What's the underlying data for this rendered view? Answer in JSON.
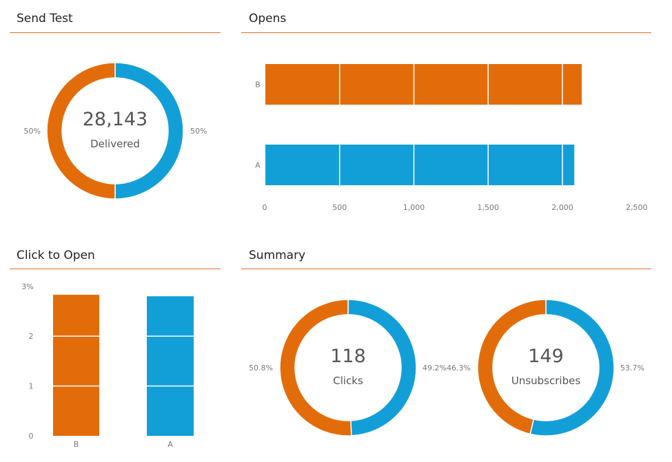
{
  "colors": {
    "B": "#e36c0a",
    "A": "#129fd8",
    "divider": "#e46b2b",
    "text": "#555555",
    "axis": "#777777"
  },
  "panels": {
    "send_test": {
      "title": "Send Test"
    },
    "opens": {
      "title": "Opens"
    },
    "click_to_open": {
      "title": "Click to Open"
    },
    "summary": {
      "title": "Summary"
    }
  },
  "chart_data": [
    {
      "id": "send_test",
      "type": "pie",
      "title": "Send Test",
      "center_value": "28,143",
      "center_label": "Delivered",
      "slices": [
        {
          "name": "B",
          "value": 50,
          "label": "50%"
        },
        {
          "name": "A",
          "value": 50,
          "label": "50%"
        }
      ]
    },
    {
      "id": "opens",
      "type": "bar",
      "orientation": "horizontal",
      "title": "Opens",
      "categories": [
        "B",
        "A"
      ],
      "values": [
        2130,
        2080
      ],
      "xlim": [
        0,
        2500
      ],
      "xticks": [
        0,
        500,
        1000,
        1500,
        2000,
        2500
      ],
      "xtick_labels": [
        "0",
        "500",
        "1,000",
        "1,500",
        "2,000",
        "2,500"
      ],
      "grid": true
    },
    {
      "id": "click_to_open",
      "type": "bar",
      "orientation": "vertical",
      "title": "Click to Open",
      "categories": [
        "B",
        "A"
      ],
      "values": [
        2.83,
        2.8
      ],
      "ylim": [
        0,
        3
      ],
      "yticks": [
        0,
        1,
        2,
        3
      ],
      "ytick_labels": [
        "0",
        "1",
        "2",
        "3%"
      ],
      "grid": true
    },
    {
      "id": "summary_clicks",
      "type": "pie",
      "title": "Summary",
      "center_value": "118",
      "center_label": "Clicks",
      "slices": [
        {
          "name": "B",
          "value": 50.8,
          "label": "50.8%"
        },
        {
          "name": "A",
          "value": 49.2,
          "label": "49.2%"
        }
      ]
    },
    {
      "id": "summary_unsubscribes",
      "type": "pie",
      "title": "Summary",
      "center_value": "149",
      "center_label": "Unsubscribes",
      "slices": [
        {
          "name": "B",
          "value": 46.3,
          "label": "46.3%"
        },
        {
          "name": "A",
          "value": 53.7,
          "label": "53.7%"
        }
      ]
    }
  ]
}
